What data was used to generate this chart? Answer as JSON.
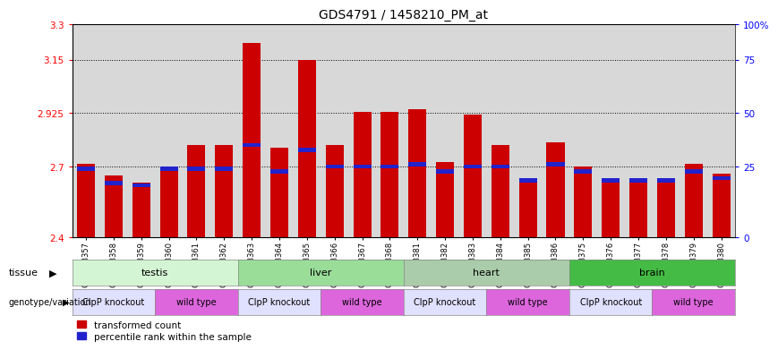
{
  "title": "GDS4791 / 1458210_PM_at",
  "samples": [
    "GSM988357",
    "GSM988358",
    "GSM988359",
    "GSM988360",
    "GSM988361",
    "GSM988362",
    "GSM988363",
    "GSM988364",
    "GSM988365",
    "GSM988366",
    "GSM988367",
    "GSM988368",
    "GSM988381",
    "GSM988382",
    "GSM988383",
    "GSM988384",
    "GSM988385",
    "GSM988386",
    "GSM988375",
    "GSM988376",
    "GSM988377",
    "GSM988378",
    "GSM988379",
    "GSM988380"
  ],
  "red_values": [
    2.71,
    2.66,
    2.63,
    2.7,
    2.79,
    2.79,
    3.22,
    2.78,
    3.15,
    2.79,
    2.93,
    2.93,
    2.94,
    2.72,
    2.92,
    2.79,
    2.65,
    2.8,
    2.7,
    2.65,
    2.65,
    2.64,
    2.71,
    2.67
  ],
  "blue_values": [
    2.69,
    2.63,
    2.62,
    2.69,
    2.69,
    2.69,
    2.79,
    2.68,
    2.77,
    2.7,
    2.7,
    2.7,
    2.71,
    2.68,
    2.7,
    2.7,
    2.64,
    2.71,
    2.68,
    2.64,
    2.64,
    2.64,
    2.68,
    2.65
  ],
  "ymin": 2.4,
  "ymax": 3.3,
  "yticks_left": [
    2.4,
    2.7,
    2.925,
    3.15,
    3.3
  ],
  "ytick_labels_left": [
    "2.4",
    "2.7",
    "2.925",
    "3.15",
    "3.3"
  ],
  "yticks_right": [
    2.4,
    2.7,
    2.925,
    3.15,
    3.3
  ],
  "ytick_labels_right": [
    "0",
    "25",
    "50",
    "75",
    "100%"
  ],
  "grid_lines": [
    2.7,
    2.925,
    3.15
  ],
  "tissue_groups": [
    {
      "label": "testis",
      "start": 0,
      "end": 6,
      "color": "#d4f5d4"
    },
    {
      "label": "liver",
      "start": 6,
      "end": 12,
      "color": "#99dd99"
    },
    {
      "label": "heart",
      "start": 12,
      "end": 18,
      "color": "#aaccaa"
    },
    {
      "label": "brain",
      "start": 18,
      "end": 24,
      "color": "#44bb44"
    }
  ],
  "genotype_groups": [
    {
      "label": "ClpP knockout",
      "start": 0,
      "end": 3,
      "color": "#e0e0ff"
    },
    {
      "label": "wild type",
      "start": 3,
      "end": 6,
      "color": "#dd66dd"
    },
    {
      "label": "ClpP knockout",
      "start": 6,
      "end": 9,
      "color": "#e0e0ff"
    },
    {
      "label": "wild type",
      "start": 9,
      "end": 12,
      "color": "#dd66dd"
    },
    {
      "label": "ClpP knockout",
      "start": 12,
      "end": 15,
      "color": "#e0e0ff"
    },
    {
      "label": "wild type",
      "start": 15,
      "end": 18,
      "color": "#dd66dd"
    },
    {
      "label": "ClpP knockout",
      "start": 18,
      "end": 21,
      "color": "#e0e0ff"
    },
    {
      "label": "wild type",
      "start": 21,
      "end": 24,
      "color": "#dd66dd"
    }
  ],
  "bar_color": "#cc0000",
  "blue_color": "#2222cc",
  "bg_color": "#d8d8d8",
  "legend_red": "transformed count",
  "legend_blue": "percentile rank within the sample",
  "tissue_label": "tissue",
  "genotype_label": "genotype/variation"
}
